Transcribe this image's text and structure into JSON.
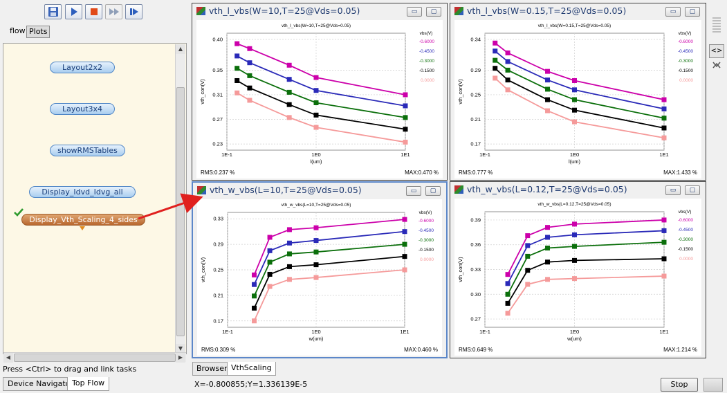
{
  "toolbar": {
    "buttons": [
      "save-icon",
      "play-icon",
      "stop-icon",
      "fast-forward-icon",
      "step-icon"
    ]
  },
  "left_tabs": {
    "flow": "flow",
    "plots": "Plots"
  },
  "flow_nodes": [
    {
      "label": "Layout2x2"
    },
    {
      "label": "Layout3x4"
    },
    {
      "label": "showRMSTables"
    },
    {
      "label": "Display_Idvd_Idvg_all"
    },
    {
      "label": "Display_Vth_Scaling_4_sides"
    }
  ],
  "hint": "Press <Ctrl> to drag and link tasks",
  "bottom_tabs": [
    "Device Navigator",
    "Top Flow"
  ],
  "right_tabs": [
    "Browser",
    "VthScaling"
  ],
  "coords": "X=-0.800855;Y=1.336139E-5",
  "stop_label": "Stop",
  "colors": {
    "s1": "#cc00aa",
    "s2": "#2a2ab8",
    "s3": "#0b6f0b",
    "s4": "#000000",
    "s5": "#f59a9a"
  },
  "plots": [
    {
      "win_title": "vth_l_vbs(W=10,T=25@Vds=0.05)",
      "chart_title": "vth_l_vbs(W=10,T=25@Vds=0.05)",
      "rms": "RMS:0.237 %",
      "max": "MAX:0.470 %"
    },
    {
      "win_title": "vth_l_vbs(W=0.15,T=25@Vds=0.05)",
      "chart_title": "vth_l_vbs(W=0.15,T=25@Vds=0.05)",
      "rms": "RMS:0.777 %",
      "max": "MAX:1.433 %"
    },
    {
      "win_title": "vth_w_vbs(L=10,T=25@Vds=0.05)",
      "chart_title": "vth_w_vbs(L=10,T=25@Vds=0.05)",
      "rms": "RMS:0.309 %",
      "max": "MAX:0.460 %"
    },
    {
      "win_title": "vth_w_vbs(L=0.12,T=25@Vds=0.05)",
      "chart_title": "vth_w_vbs(L=0.12,T=25@Vds=0.05)",
      "rms": "RMS:0.649 %",
      "max": "MAX:1.214 %"
    }
  ],
  "chart_data": [
    {
      "type": "line",
      "title": "vth_l_vbs(W=10,T=25@Vds=0.05)",
      "xlabel": "l(um)",
      "ylabel": "vth_con(V)",
      "xscale": "log",
      "xlim": [
        0.1,
        10
      ],
      "ylim": [
        0.22,
        0.41
      ],
      "xticks": [
        "1E-1",
        "1E0",
        "1E1"
      ],
      "yticks": [
        "0.23",
        "0.27",
        "0.31",
        "0.35",
        "0.40"
      ],
      "legend_title": "vbs(V)",
      "legend": [
        "-0.6000",
        "-0.4500",
        "-0.3000",
        "-0.1500",
        "0.0000"
      ],
      "x": [
        0.13,
        0.18,
        0.5,
        1.0,
        10.0
      ],
      "series": [
        {
          "name": "-0.6000",
          "values": [
            0.393,
            0.385,
            0.358,
            0.338,
            0.31
          ]
        },
        {
          "name": "-0.4500",
          "values": [
            0.373,
            0.362,
            0.335,
            0.317,
            0.292
          ]
        },
        {
          "name": "-0.3000",
          "values": [
            0.353,
            0.341,
            0.314,
            0.297,
            0.273
          ]
        },
        {
          "name": "-0.1500",
          "values": [
            0.333,
            0.321,
            0.294,
            0.277,
            0.254
          ]
        },
        {
          "name": "0.0000",
          "values": [
            0.313,
            0.301,
            0.273,
            0.257,
            0.233
          ]
        }
      ]
    },
    {
      "type": "line",
      "title": "vth_l_vbs(W=0.15,T=25@Vds=0.05)",
      "xlabel": "l(um)",
      "ylabel": "vth_con(V)",
      "xscale": "log",
      "xlim": [
        0.1,
        10
      ],
      "ylim": [
        0.16,
        0.35
      ],
      "xticks": [
        "1E-1",
        "1E0",
        "1E1"
      ],
      "yticks": [
        "0.17",
        "0.21",
        "0.25",
        "0.29",
        "0.34"
      ],
      "legend_title": "vbs(V)",
      "legend": [
        "-0.6000",
        "-0.4500",
        "-0.3000",
        "-0.1500",
        "0.0000"
      ],
      "x": [
        0.13,
        0.18,
        0.5,
        1.0,
        10.0
      ],
      "series": [
        {
          "name": "-0.6000",
          "values": [
            0.334,
            0.318,
            0.288,
            0.273,
            0.242
          ]
        },
        {
          "name": "-0.4500",
          "values": [
            0.321,
            0.304,
            0.274,
            0.258,
            0.227
          ]
        },
        {
          "name": "-0.3000",
          "values": [
            0.306,
            0.29,
            0.259,
            0.242,
            0.212
          ]
        },
        {
          "name": "-0.1500",
          "values": [
            0.293,
            0.274,
            0.242,
            0.225,
            0.196
          ]
        },
        {
          "name": "0.0000",
          "values": [
            0.277,
            0.258,
            0.224,
            0.206,
            0.18
          ]
        }
      ]
    },
    {
      "type": "line",
      "title": "vth_w_vbs(L=10,T=25@Vds=0.05)",
      "xlabel": "w(um)",
      "ylabel": "vth_con(V)",
      "xscale": "log",
      "xlim": [
        0.1,
        10
      ],
      "ylim": [
        0.16,
        0.34
      ],
      "xticks": [
        "1E-1",
        "1E0",
        "1E1"
      ],
      "yticks": [
        "0.17",
        "0.21",
        "0.25",
        "0.29",
        "0.33"
      ],
      "legend_title": "vbs(V)",
      "legend": [
        "-0.6000",
        "-0.4500",
        "-0.3000",
        "-0.1500",
        "0.0000"
      ],
      "x": [
        0.2,
        0.3,
        0.5,
        1.0,
        10.0
      ],
      "series": [
        {
          "name": "-0.6000",
          "values": [
            0.242,
            0.301,
            0.313,
            0.316,
            0.329
          ]
        },
        {
          "name": "-0.4500",
          "values": [
            0.227,
            0.28,
            0.292,
            0.296,
            0.31
          ]
        },
        {
          "name": "-0.3000",
          "values": [
            0.209,
            0.262,
            0.275,
            0.278,
            0.29
          ]
        },
        {
          "name": "-0.1500",
          "values": [
            0.19,
            0.243,
            0.255,
            0.258,
            0.271
          ]
        },
        {
          "name": "0.0000",
          "values": [
            0.17,
            0.224,
            0.235,
            0.238,
            0.25
          ]
        }
      ]
    },
    {
      "type": "line",
      "title": "vth_w_vbs(L=0.12,T=25@Vds=0.05)",
      "xlabel": "w(um)",
      "ylabel": "vth_con(V)",
      "xscale": "log",
      "xlim": [
        0.1,
        10
      ],
      "ylim": [
        0.26,
        0.4
      ],
      "xticks": [
        "1E-1",
        "1E0",
        "1E1"
      ],
      "yticks": [
        "0.27",
        "0.30",
        "0.33",
        "0.36",
        "0.39"
      ],
      "legend_title": "vbs(V)",
      "legend": [
        "-0.6000",
        "-0.4500",
        "-0.3000",
        "-0.1500",
        "0.0000"
      ],
      "x": [
        0.18,
        0.3,
        0.5,
        1.0,
        10.0
      ],
      "series": [
        {
          "name": "-0.6000",
          "values": [
            0.324,
            0.371,
            0.381,
            0.385,
            0.39
          ]
        },
        {
          "name": "-0.4500",
          "values": [
            0.313,
            0.359,
            0.369,
            0.372,
            0.377
          ]
        },
        {
          "name": "-0.3000",
          "values": [
            0.3,
            0.346,
            0.356,
            0.358,
            0.363
          ]
        },
        {
          "name": "-0.1500",
          "values": [
            0.289,
            0.329,
            0.339,
            0.341,
            0.343
          ]
        },
        {
          "name": "0.0000",
          "values": [
            0.277,
            0.312,
            0.318,
            0.319,
            0.322
          ]
        }
      ]
    }
  ]
}
